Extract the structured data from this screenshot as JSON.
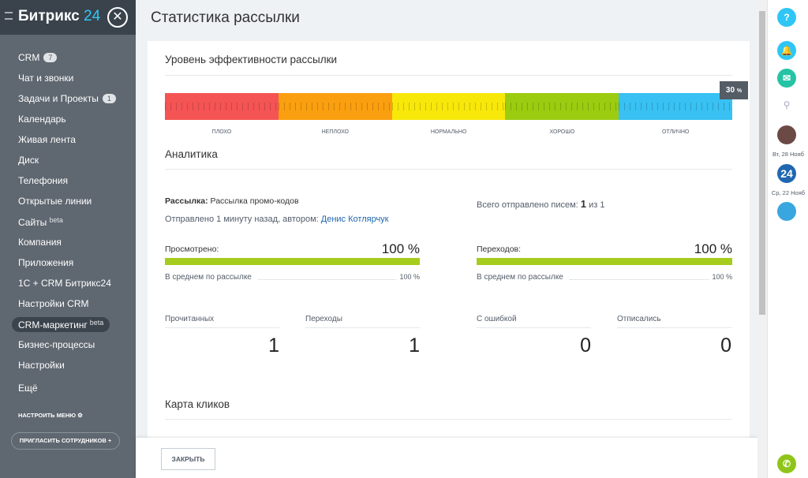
{
  "sidebar": {
    "logo": "Битрикс",
    "logo_num": "24",
    "menu": [
      {
        "label": "CRM",
        "badge": "7"
      },
      {
        "label": "Чат и звонки"
      },
      {
        "label": "Задачи и Проекты",
        "badge": "1"
      },
      {
        "label": "Календарь"
      },
      {
        "label": "Живая лента"
      },
      {
        "label": "Диск"
      },
      {
        "label": "Телефония"
      },
      {
        "label": "Открытые линии"
      },
      {
        "label": "Сайты",
        "beta": "beta"
      },
      {
        "label": "Компания"
      },
      {
        "label": "Приложения"
      },
      {
        "label": "1С + CRM Битрикс24"
      },
      {
        "label": "Настройки CRM"
      },
      {
        "label": "CRM-маркетинг",
        "beta": "beta"
      },
      {
        "label": "Бизнес-процессы"
      },
      {
        "label": "Настройки"
      },
      {
        "label": "Ещё"
      }
    ],
    "configure": "НАСТРОИТЬ МЕНЮ",
    "invite": "ПРИГЛАСИТЬ СОТРУДНИКОВ"
  },
  "page": {
    "title": "Статистика рассылки",
    "efficiency": {
      "heading": "Уровень эффективности рассылки",
      "marker": "30",
      "marker_unit": "%",
      "levels": [
        "ПЛОХО",
        "НЕПЛОХО",
        "НОРМАЛЬНО",
        "ХОРОШО",
        "ОТЛИЧНО"
      ]
    },
    "analytics": {
      "heading": "Аналитика",
      "mailing_label": "Рассылка:",
      "mailing_name": "Рассылка промо-кодов",
      "sent_text": "Отправлено 1 минуту назад, автором:",
      "author": "Денис Котлярчук",
      "total_label": "Всего отправлено писем:",
      "total_value": "1",
      "total_of": "из 1",
      "viewed_label": "Просмотрено:",
      "viewed_value": "100 %",
      "viewed_avg_label": "В среднем по рассылке",
      "viewed_avg_value": "100 %",
      "clicks_label": "Переходов:",
      "clicks_value": "100 %",
      "clicks_avg_label": "В среднем по рассылке",
      "clicks_avg_value": "100 %",
      "stats": [
        {
          "label": "Прочитанных",
          "value": "1"
        },
        {
          "label": "Переходы",
          "value": "1"
        },
        {
          "label": "С ошибкой",
          "value": "0"
        },
        {
          "label": "Отписались",
          "value": "0"
        }
      ]
    },
    "click_map": "Карта кликов",
    "close": "ЗАКРЫТЬ"
  },
  "right_panel": {
    "help": "?",
    "date1": "Вт, 28 Нояб",
    "app": "24",
    "date2": "Ср, 22 Нояб"
  }
}
